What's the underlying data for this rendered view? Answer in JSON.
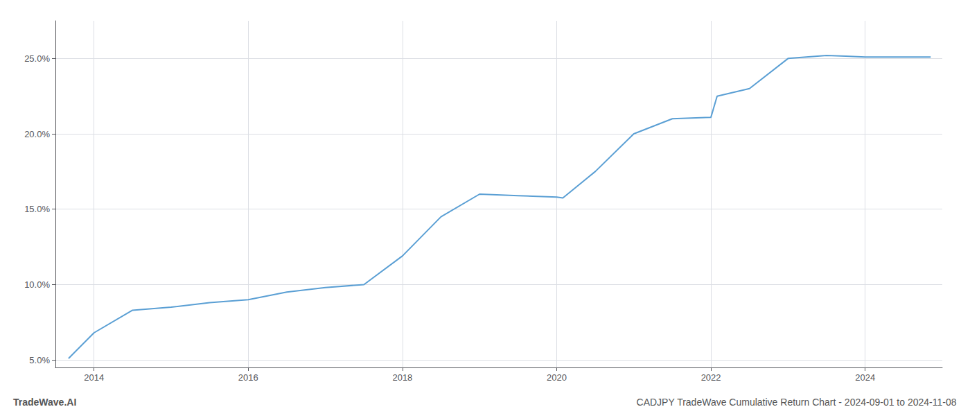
{
  "chart_data": {
    "type": "line",
    "title": "CADJPY TradeWave Cumulative Return Chart - 2024-09-01 to 2024-11-08",
    "annotations": [
      "TradeWave.AI"
    ],
    "x": [
      2013.67,
      2014.0,
      2014.5,
      2015.0,
      2015.5,
      2016.0,
      2016.5,
      2017.0,
      2017.5,
      2018.0,
      2018.5,
      2019.0,
      2019.5,
      2020.0,
      2020.08,
      2020.5,
      2021.0,
      2021.5,
      2022.0,
      2022.08,
      2022.5,
      2023.0,
      2023.5,
      2023.75,
      2024.0,
      2024.5,
      2024.85
    ],
    "values": [
      5.1,
      6.8,
      8.3,
      8.5,
      8.8,
      9.0,
      9.5,
      9.8,
      10.0,
      11.9,
      14.5,
      16.0,
      15.9,
      15.8,
      15.75,
      17.5,
      20.0,
      21.0,
      21.1,
      22.5,
      23.0,
      25.0,
      25.2,
      25.15,
      25.1,
      25.1,
      25.1
    ],
    "color": "#5a9fd4",
    "xlim": [
      2013.5,
      2025.0
    ],
    "ylim": [
      4.5,
      27.5
    ],
    "xticks": [
      2014,
      2016,
      2018,
      2020,
      2022,
      2024
    ],
    "yticks": [
      {
        "value": 5.0,
        "label": "5.0%"
      },
      {
        "value": 10.0,
        "label": "10.0%"
      },
      {
        "value": 15.0,
        "label": "15.0%"
      },
      {
        "value": 20.0,
        "label": "20.0%"
      },
      {
        "value": 25.0,
        "label": "25.0%"
      }
    ],
    "grid": true
  }
}
